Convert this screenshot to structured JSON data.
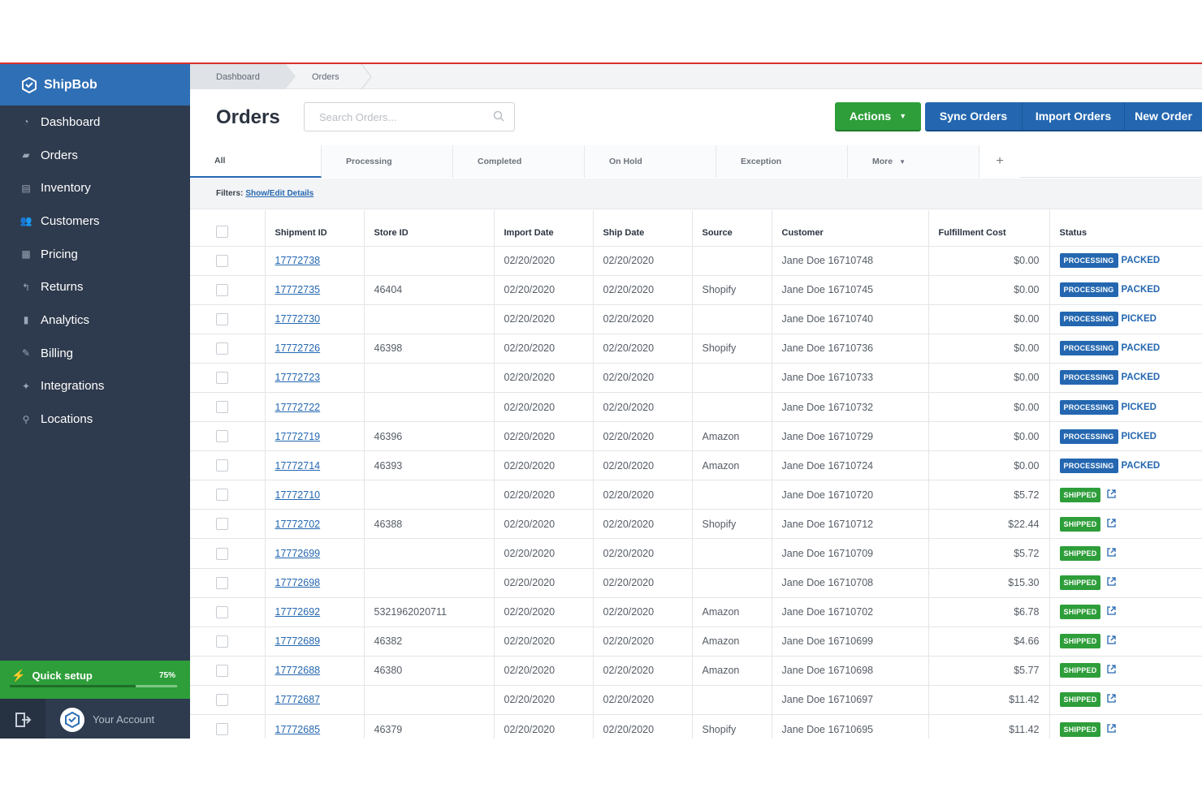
{
  "app": {
    "brand": "ShipBob"
  },
  "breadcrumb": [
    "Dashboard",
    "Orders"
  ],
  "sidebar": {
    "items": [
      {
        "label": "Dashboard",
        "icon": "gauge-icon"
      },
      {
        "label": "Orders",
        "icon": "tag-icon"
      },
      {
        "label": "Inventory",
        "icon": "box-icon"
      },
      {
        "label": "Customers",
        "icon": "users-icon"
      },
      {
        "label": "Pricing",
        "icon": "calculator-icon"
      },
      {
        "label": "Returns",
        "icon": "reply-icon"
      },
      {
        "label": "Analytics",
        "icon": "bar-chart-icon"
      },
      {
        "label": "Billing",
        "icon": "pen-icon"
      },
      {
        "label": "Integrations",
        "icon": "plug-icon"
      },
      {
        "label": "Locations",
        "icon": "pin-icon"
      }
    ],
    "quick_setup": {
      "label": "Quick setup",
      "percent_text": "75%",
      "progress": 0.75
    },
    "account_label": "Your Account"
  },
  "header": {
    "title": "Orders",
    "search_placeholder": "Search Orders...",
    "actions_label": "Actions",
    "sync_label": "Sync Orders",
    "import_label": "Import Orders",
    "new_label": "New Order"
  },
  "tabs": [
    "All",
    "Processing",
    "Completed",
    "On Hold",
    "Exception",
    "More",
    "+"
  ],
  "filters": {
    "label": "Filters:",
    "link": "Show/Edit Details"
  },
  "table": {
    "columns": [
      "Shipment ID",
      "Store ID",
      "Import Date",
      "Ship Date",
      "Source",
      "Customer",
      "Fulfillment Cost",
      "Status"
    ],
    "rows": [
      {
        "id": "17772738",
        "store": "",
        "import": "02/20/2020",
        "ship": "02/20/2020",
        "source": "",
        "customer": "Jane Doe 16710748",
        "cost": "$0.00",
        "status": "PROCESSING",
        "sub": "PACKED"
      },
      {
        "id": "17772735",
        "store": "46404",
        "import": "02/20/2020",
        "ship": "02/20/2020",
        "source": "Shopify",
        "customer": "Jane Doe 16710745",
        "cost": "$0.00",
        "status": "PROCESSING",
        "sub": "PACKED"
      },
      {
        "id": "17772730",
        "store": "",
        "import": "02/20/2020",
        "ship": "02/20/2020",
        "source": "",
        "customer": "Jane Doe 16710740",
        "cost": "$0.00",
        "status": "PROCESSING",
        "sub": "PICKED"
      },
      {
        "id": "17772726",
        "store": "46398",
        "import": "02/20/2020",
        "ship": "02/20/2020",
        "source": "Shopify",
        "customer": "Jane Doe 16710736",
        "cost": "$0.00",
        "status": "PROCESSING",
        "sub": "PACKED"
      },
      {
        "id": "17772723",
        "store": "",
        "import": "02/20/2020",
        "ship": "02/20/2020",
        "source": "",
        "customer": "Jane Doe 16710733",
        "cost": "$0.00",
        "status": "PROCESSING",
        "sub": "PACKED"
      },
      {
        "id": "17772722",
        "store": "",
        "import": "02/20/2020",
        "ship": "02/20/2020",
        "source": "",
        "customer": "Jane Doe 16710732",
        "cost": "$0.00",
        "status": "PROCESSING",
        "sub": "PICKED"
      },
      {
        "id": "17772719",
        "store": "46396",
        "import": "02/20/2020",
        "ship": "02/20/2020",
        "source": "Amazon",
        "customer": "Jane Doe 16710729",
        "cost": "$0.00",
        "status": "PROCESSING",
        "sub": "PICKED"
      },
      {
        "id": "17772714",
        "store": "46393",
        "import": "02/20/2020",
        "ship": "02/20/2020",
        "source": "Amazon",
        "customer": "Jane Doe 16710724",
        "cost": "$0.00",
        "status": "PROCESSING",
        "sub": "PACKED"
      },
      {
        "id": "17772710",
        "store": "",
        "import": "02/20/2020",
        "ship": "02/20/2020",
        "source": "",
        "customer": "Jane Doe 16710720",
        "cost": "$5.72",
        "status": "SHIPPED",
        "sub": ""
      },
      {
        "id": "17772702",
        "store": "46388",
        "import": "02/20/2020",
        "ship": "02/20/2020",
        "source": "Shopify",
        "customer": "Jane Doe 16710712",
        "cost": "$22.44",
        "status": "SHIPPED",
        "sub": ""
      },
      {
        "id": "17772699",
        "store": "",
        "import": "02/20/2020",
        "ship": "02/20/2020",
        "source": "",
        "customer": "Jane Doe 16710709",
        "cost": "$5.72",
        "status": "SHIPPED",
        "sub": ""
      },
      {
        "id": "17772698",
        "store": "",
        "import": "02/20/2020",
        "ship": "02/20/2020",
        "source": "",
        "customer": "Jane Doe 16710708",
        "cost": "$15.30",
        "status": "SHIPPED",
        "sub": ""
      },
      {
        "id": "17772692",
        "store": "5321962020711",
        "import": "02/20/2020",
        "ship": "02/20/2020",
        "source": "Amazon",
        "customer": "Jane Doe 16710702",
        "cost": "$6.78",
        "status": "SHIPPED",
        "sub": ""
      },
      {
        "id": "17772689",
        "store": "46382",
        "import": "02/20/2020",
        "ship": "02/20/2020",
        "source": "Amazon",
        "customer": "Jane Doe 16710699",
        "cost": "$4.66",
        "status": "SHIPPED",
        "sub": ""
      },
      {
        "id": "17772688",
        "store": "46380",
        "import": "02/20/2020",
        "ship": "02/20/2020",
        "source": "Amazon",
        "customer": "Jane Doe 16710698",
        "cost": "$5.77",
        "status": "SHIPPED",
        "sub": ""
      },
      {
        "id": "17772687",
        "store": "",
        "import": "02/20/2020",
        "ship": "02/20/2020",
        "source": "",
        "customer": "Jane Doe 16710697",
        "cost": "$11.42",
        "status": "SHIPPED",
        "sub": ""
      },
      {
        "id": "17772685",
        "store": "46379",
        "import": "02/20/2020",
        "ship": "02/20/2020",
        "source": "Shopify",
        "customer": "Jane Doe 16710695",
        "cost": "$11.42",
        "status": "SHIPPED",
        "sub": ""
      }
    ]
  },
  "colors": {
    "brand_blue": "#2f6fb5",
    "sidebar": "#2e3a4d",
    "green": "#2e9e3a",
    "link_blue": "#2467b0",
    "top_rule": "#d9302b"
  }
}
